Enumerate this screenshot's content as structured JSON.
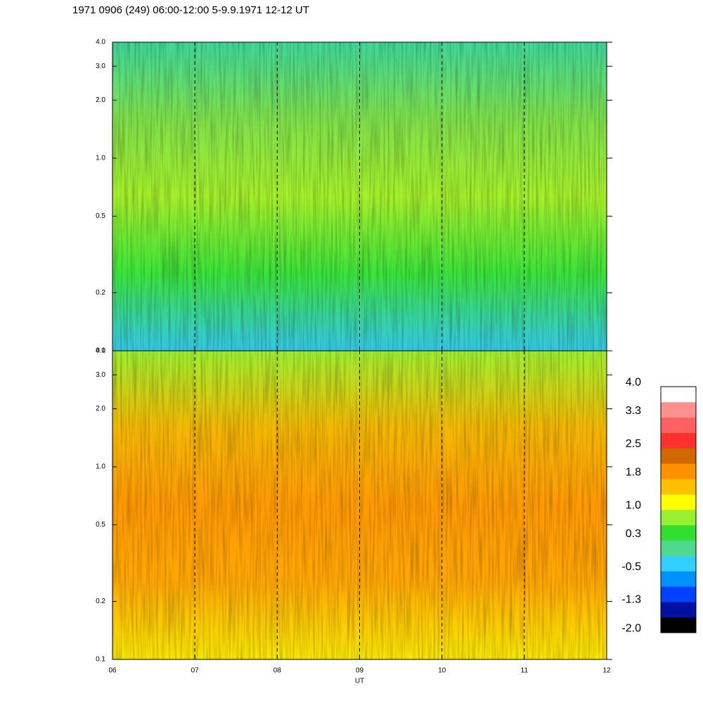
{
  "chart_data": [
    {
      "type": "spectrogram",
      "title": "1971 0906 (249) 06:00-12:00 5-9.9.1971  12-12 UT",
      "xlim": [
        6,
        12
      ],
      "xticks": [
        6,
        7,
        8,
        9,
        10,
        11,
        12
      ],
      "ylim": [
        0.1,
        4
      ],
      "log_y": true,
      "grid": true,
      "yticks": [
        {
          "value": 0.1,
          "label": "0.1"
        },
        0.2,
        0.5,
        {
          "value": 1,
          "label": "1.0"
        },
        {
          "value": 2,
          "label": "2.0"
        },
        {
          "value": 3,
          "label": "3.0"
        },
        {
          "value": 4,
          "label": "4.0"
        }
      ],
      "gradient": [
        "#3fd89a",
        "#7fe04a",
        "#a6ef2a",
        "#3ae33a",
        "#35c8e8"
      ]
    },
    {
      "type": "spectrogram",
      "xlabel": "UT",
      "xlim": [
        6,
        12
      ],
      "xticks": [
        {
          "value": 6,
          "label": "06"
        },
        {
          "value": 7,
          "label": "07"
        },
        {
          "value": 8,
          "label": "08"
        },
        {
          "value": 9,
          "label": "09"
        },
        {
          "value": 10,
          "label": "10"
        },
        {
          "value": 11,
          "label": "11"
        },
        {
          "value": 12,
          "label": "12"
        }
      ],
      "ylim": [
        0.1,
        4
      ],
      "log_y": true,
      "grid": true,
      "yticks": [
        {
          "value": 0.1,
          "label": "0.1"
        },
        0.2,
        0.5,
        {
          "value": 1,
          "label": "1.0"
        },
        {
          "value": 2,
          "label": "2.0"
        },
        {
          "value": 3,
          "label": "3.0"
        },
        {
          "value": 4,
          "label": "4.0"
        }
      ],
      "gradient": [
        "#9ff030",
        "#f5b800",
        "#ff9a00",
        "#ffa800",
        "#f8e800"
      ],
      "colorbar": {
        "lim": [
          -2.1,
          3.9
        ],
        "ticks": [
          {
            "value": 4,
            "label": "4.0"
          },
          3.3,
          2.5,
          1.8,
          {
            "value": 1,
            "label": "1.0"
          },
          0.3,
          -0.5,
          -1.3,
          {
            "value": -2,
            "label": "-2.0"
          }
        ],
        "colors": [
          "#000000",
          "#0010a0",
          "#0040ff",
          "#0090ff",
          "#30d0ff",
          "#50d890",
          "#30e030",
          "#98f030",
          "#ffff00",
          "#ffc000",
          "#ff9000",
          "#d06800",
          "#ff3030",
          "#ff6060",
          "#ff9090",
          "#ffffff"
        ]
      }
    }
  ]
}
